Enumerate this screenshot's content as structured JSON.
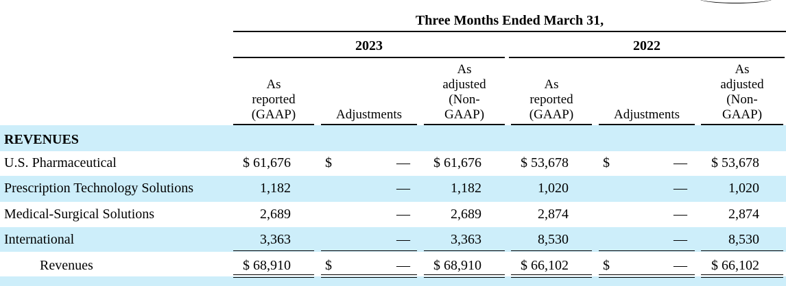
{
  "header": {
    "period": "Three Months Ended March 31,",
    "years": [
      "2023",
      "2022"
    ],
    "columns": [
      [
        "As",
        "reported",
        "(GAAP)"
      ],
      [
        "Adjustments"
      ],
      [
        "As",
        "adjusted",
        "(Non-",
        "GAAP)"
      ],
      [
        "As",
        "reported",
        "(GAAP)"
      ],
      [
        "Adjustments"
      ],
      [
        "As",
        "adjusted",
        "(Non-",
        "GAAP)"
      ]
    ]
  },
  "section": "REVENUES",
  "rows": [
    {
      "label": "U.S. Pharmaceutical",
      "c1": "$ 61,676",
      "c2d": "$",
      "c2": "—",
      "c3": "$ 61,676",
      "c4": "$ 53,678",
      "c5d": "$",
      "c5": "—",
      "c6": "$ 53,678"
    },
    {
      "label": "Prescription Technology Solutions",
      "c1": "1,182",
      "c2d": "",
      "c2": "—",
      "c3": "1,182",
      "c4": "1,020",
      "c5d": "",
      "c5": "—",
      "c6": "1,020"
    },
    {
      "label": "Medical-Surgical Solutions",
      "c1": "2,689",
      "c2d": "",
      "c2": "—",
      "c3": "2,689",
      "c4": "2,874",
      "c5d": "",
      "c5": "—",
      "c6": "2,874"
    },
    {
      "label": "International",
      "c1": "3,363",
      "c2d": "",
      "c2": "—",
      "c3": "3,363",
      "c4": "8,530",
      "c5d": "",
      "c5": "—",
      "c6": "8,530"
    },
    {
      "label": "Revenues",
      "c1": "$ 68,910",
      "c2d": "$",
      "c2": "—",
      "c3": "$ 68,910",
      "c4": "$ 66,102",
      "c5d": "$",
      "c5": "—",
      "c6": "$ 66,102"
    }
  ]
}
